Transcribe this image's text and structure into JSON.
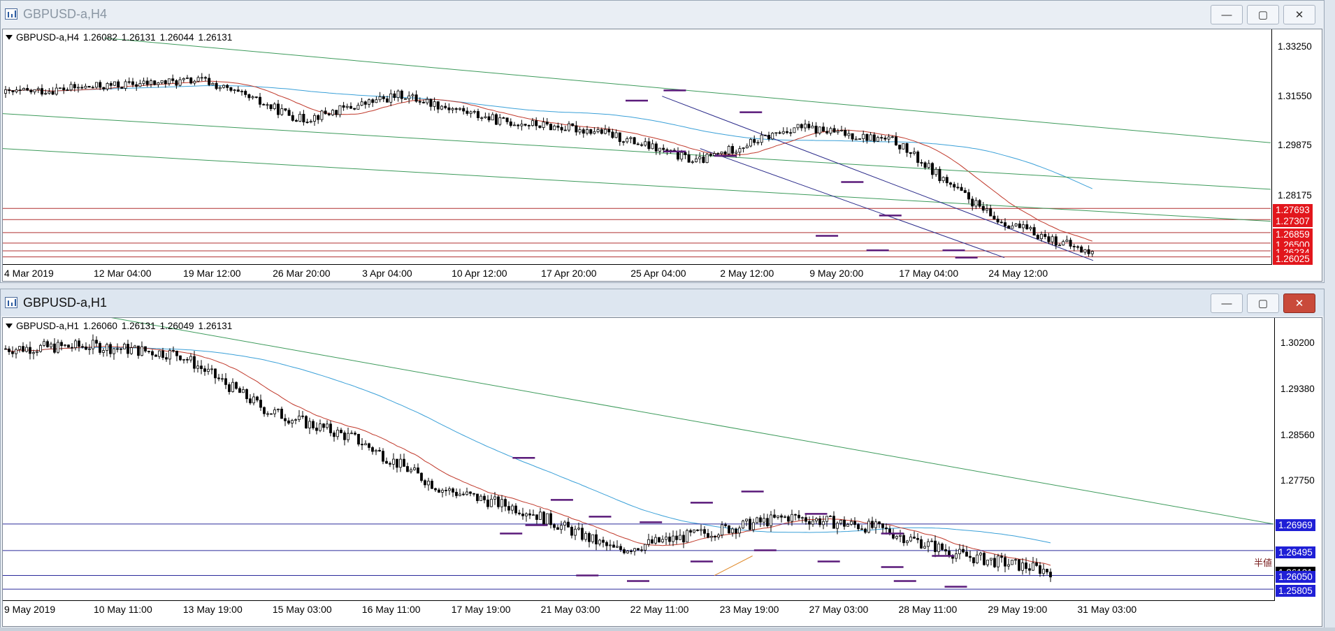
{
  "windows": [
    {
      "title": "GBPUSD-a,H4",
      "info": {
        "symbol": "GBPUSD-a,H4",
        "open": "1.26082",
        "high": "1.26131",
        "low": "1.26044",
        "close": "1.26131"
      },
      "price_ticks": [
        "1.33250",
        "1.31550",
        "1.29875",
        "1.28175"
      ],
      "price_labels": [
        {
          "text": "1.27693",
          "color": "red"
        },
        {
          "text": "1.27307",
          "color": "red"
        },
        {
          "text": "1.26859",
          "color": "red"
        },
        {
          "text": "1.26500",
          "color": "red"
        },
        {
          "text": "1.26234",
          "color": "red"
        },
        {
          "text": "1.26025",
          "color": "red"
        }
      ],
      "time_ticks": [
        "4 Mar 2019",
        "12 Mar 04:00",
        "19 Mar 12:00",
        "26 Mar 20:00",
        "3 Apr 04:00",
        "10 Apr 12:00",
        "17 Apr 20:00",
        "25 Apr 04:00",
        "2 May 12:00",
        "9 May 20:00",
        "17 May 04:00",
        "24 May 12:00"
      ]
    },
    {
      "title": "GBPUSD-a,H1",
      "info": {
        "symbol": "GBPUSD-a,H1",
        "open": "1.26060",
        "high": "1.26131",
        "low": "1.26049",
        "close": "1.26131"
      },
      "price_ticks": [
        "1.30200",
        "1.29380",
        "1.28560",
        "1.27750"
      ],
      "price_labels": [
        {
          "text": "1.26969",
          "color": "blue"
        },
        {
          "text": "1.26495",
          "color": "blue"
        },
        {
          "text": "1.26131",
          "color": "black"
        },
        {
          "text": "1.26050",
          "color": "blue"
        },
        {
          "text": "1.25805",
          "color": "blue"
        }
      ],
      "annotation": "半値",
      "time_ticks": [
        "9 May 2019",
        "10 May 11:00",
        "13 May 19:00",
        "15 May 03:00",
        "16 May 11:00",
        "17 May 19:00",
        "21 May 03:00",
        "22 May 11:00",
        "23 May 19:00",
        "27 May 03:00",
        "28 May 11:00",
        "29 May 19:00",
        "31 May 03:00"
      ]
    }
  ],
  "window_buttons": {
    "minimize": "—",
    "maximize": "▢",
    "close": "✕"
  },
  "colors": {
    "ma_fast": "#c0392b",
    "ma_slow": "#3aa0d8",
    "channel": "#3c9a5a",
    "trendline": "#2a2a8a",
    "hline_h4": "#b03030",
    "hline_h1": "#2b2b9b",
    "marker": "#5a1a7a",
    "label_red": "#e2161c",
    "label_blue": "#1f1fd6"
  },
  "chart_data": [
    {
      "type": "candlestick",
      "title": "GBPUSD-a,H4",
      "ylim": [
        1.258,
        1.3385
      ],
      "x": [
        "4 Mar 2019",
        "12 Mar 04:00",
        "19 Mar 12:00",
        "26 Mar 20:00",
        "3 Apr 04:00",
        "10 Apr 12:00",
        "17 Apr 20:00",
        "25 Apr 04:00",
        "2 May 12:00",
        "9 May 20:00",
        "17 May 04:00",
        "24 May 12:00"
      ],
      "close": [
        1.3165,
        1.319,
        1.321,
        1.3075,
        1.316,
        1.307,
        1.3035,
        1.293,
        1.305,
        1.3,
        1.2735,
        1.2613
      ],
      "horizontal_lines": [
        1.27693,
        1.27307,
        1.26859,
        1.265,
        1.26234,
        1.26025
      ],
      "grid": false
    },
    {
      "type": "candlestick",
      "title": "GBPUSD-a,H1",
      "ylim": [
        1.2562,
        1.3065
      ],
      "x": [
        "9 May 2019",
        "10 May 11:00",
        "13 May 19:00",
        "15 May 03:00",
        "16 May 11:00",
        "17 May 19:00",
        "21 May 03:00",
        "22 May 11:00",
        "23 May 19:00",
        "27 May 03:00",
        "28 May 11:00",
        "29 May 19:00",
        "31 May 03:00"
      ],
      "close": [
        1.301,
        1.3015,
        1.3,
        1.29,
        1.285,
        1.276,
        1.272,
        1.265,
        1.268,
        1.271,
        1.269,
        1.264,
        1.2613
      ],
      "horizontal_lines": [
        1.26969,
        1.26495,
        1.2605,
        1.25805
      ],
      "grid": false
    }
  ]
}
